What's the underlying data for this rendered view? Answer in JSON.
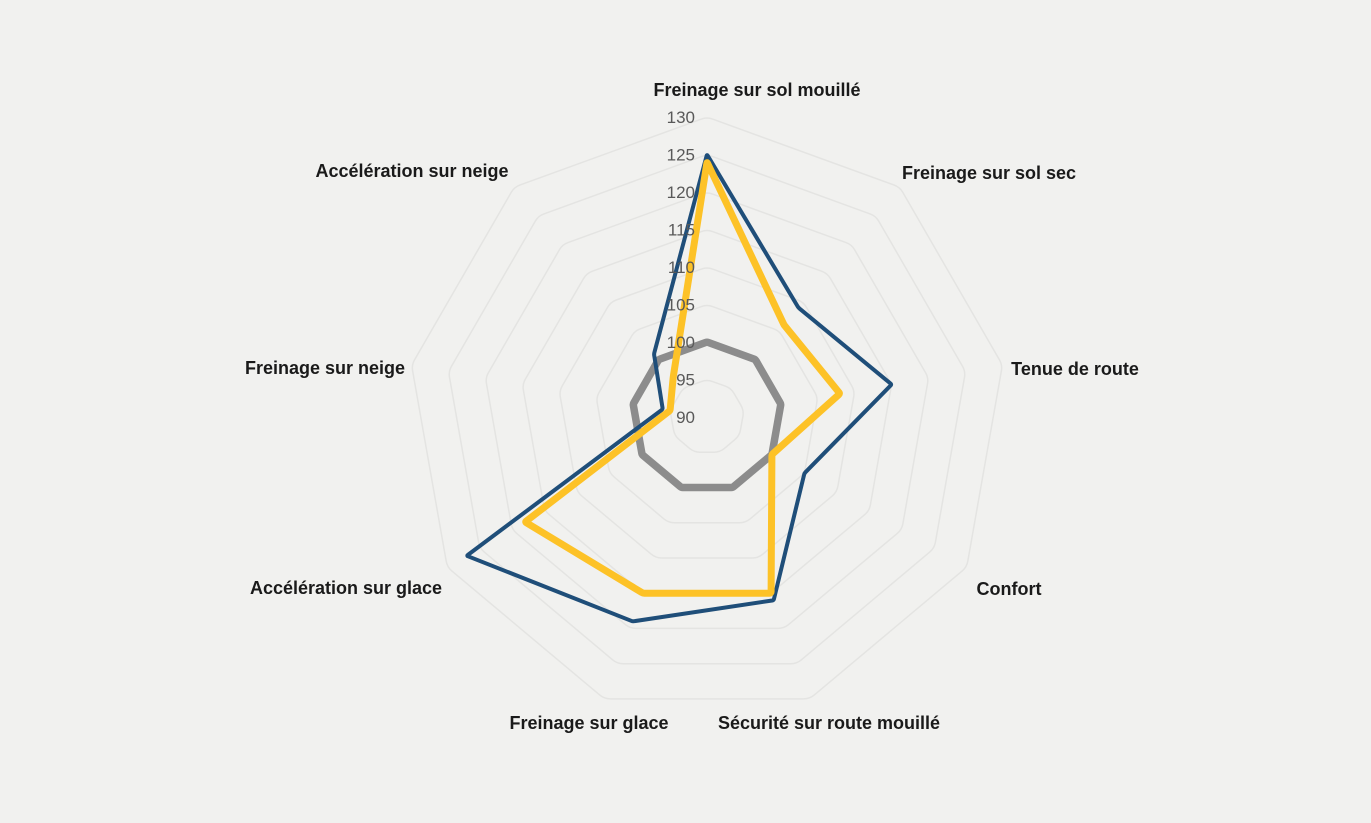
{
  "page": {
    "background": "#f1f1ef"
  },
  "chart_data": {
    "type": "radar",
    "title": "",
    "legend": "none",
    "categories": [
      "Freinage sur sol mouillé",
      "Freinage sur sol sec",
      "Tenue de route",
      "Confort",
      "Sécurité sur route mouillé",
      "Freinage sur glace",
      "Accélération sur glace",
      "Freinage sur neige",
      "Accélération sur neige"
    ],
    "radial_axis": {
      "min": 90,
      "max": 130,
      "step": 5,
      "tick_labels": [
        "130",
        "125",
        "120",
        "115",
        "110",
        "105",
        "100",
        "95",
        "90"
      ],
      "tick_values": [
        130,
        125,
        120,
        115,
        110,
        105,
        100,
        95,
        90
      ]
    },
    "grid": {
      "rings": [
        95,
        100,
        105,
        110,
        115,
        120,
        125,
        130
      ],
      "color": "#e4e4e2",
      "spokes": false
    },
    "series": [
      {
        "name": "reference-grey",
        "color": "#8c8c8c",
        "stroke_width": 7.5,
        "values": [
          100,
          100,
          100,
          100,
          100,
          100,
          100,
          100,
          100
        ]
      },
      {
        "name": "series-blue",
        "color": "#1f4e79",
        "stroke_width": 4,
        "values": [
          125,
          109,
          115,
          105,
          116,
          119,
          127,
          96,
          101
        ]
      },
      {
        "name": "series-yellow",
        "color": "#fdc227",
        "stroke_width": 7,
        "values": [
          124,
          106,
          108,
          100,
          115,
          115,
          118,
          95,
          97
        ]
      }
    ],
    "colors": {
      "tick_text": "#595959",
      "axis_label_text": "#1a1a1a",
      "background": "#f1f1ef"
    }
  }
}
